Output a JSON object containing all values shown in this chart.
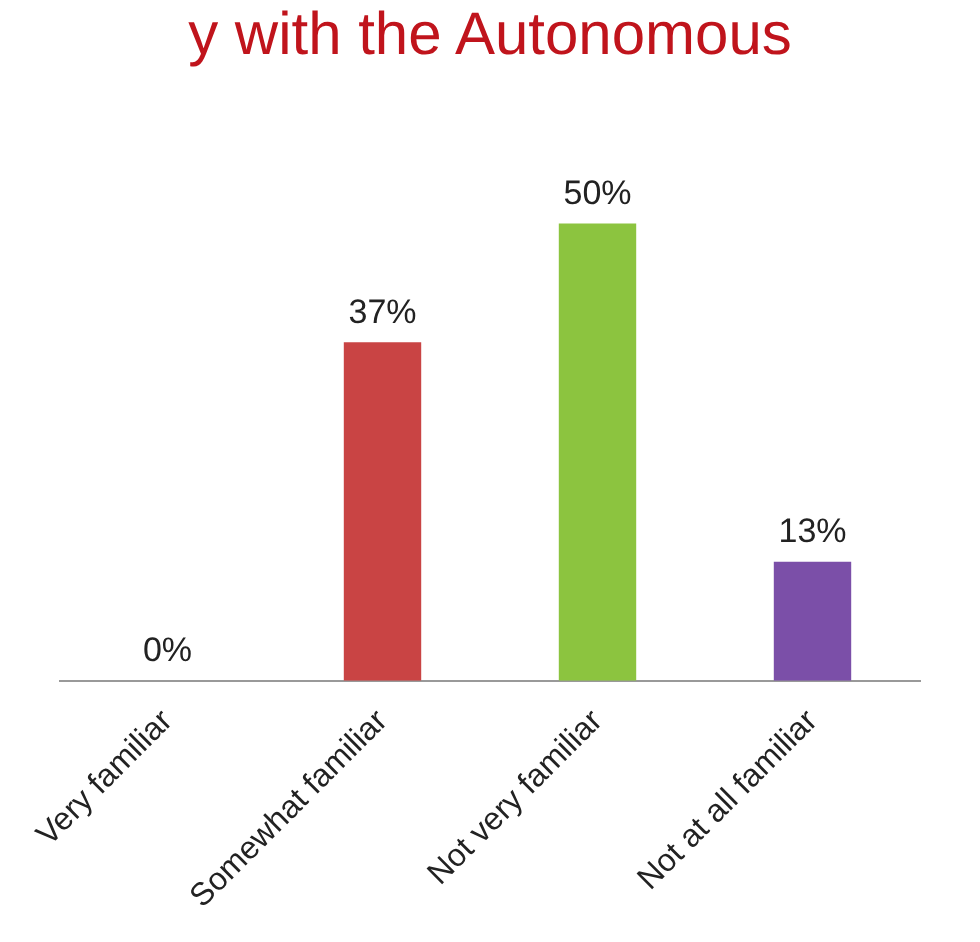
{
  "chart_data": {
    "type": "bar",
    "title": "y with the Autonomous",
    "categories": [
      "Very familiar",
      "Somewhat familiar",
      "Not very familiar",
      "Not at all familiar"
    ],
    "values": [
      0,
      37,
      50,
      13
    ],
    "colors": [
      "#2f5f9e",
      "#c94444",
      "#8cc43f",
      "#7b4fa8"
    ],
    "value_labels": [
      "0%",
      "37%",
      "50%",
      "13%"
    ],
    "grid": false,
    "legend": false
  }
}
